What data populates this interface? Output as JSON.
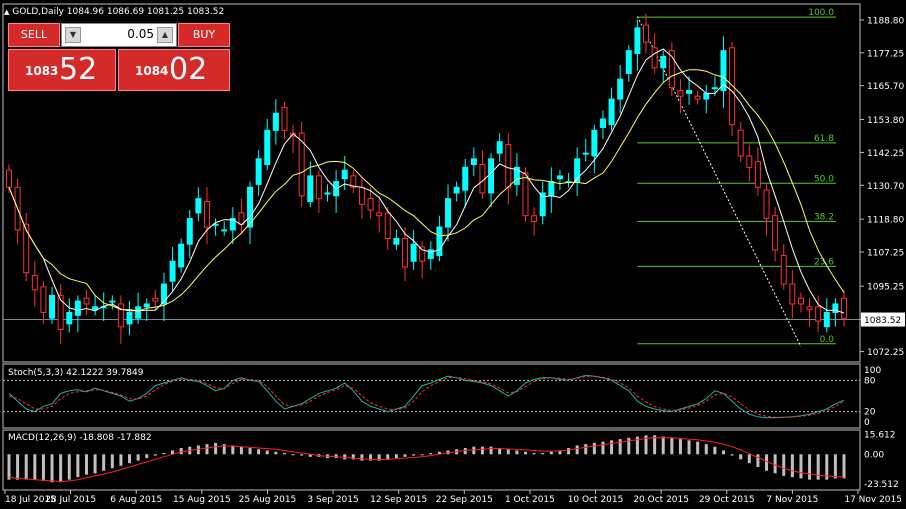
{
  "header": {
    "symbol_icon": "triangle-up-icon",
    "title": "GOLD,Daily  1084.96 1086.69 1081.25 1083.52"
  },
  "trade_panel": {
    "sell_label": "SELL",
    "buy_label": "BUY",
    "lot_value": "0.05",
    "sell_small": "1083",
    "sell_big": "52",
    "buy_small": "1084",
    "buy_big": "02"
  },
  "colors": {
    "bull": "#00ffff",
    "bear": "#ff3030",
    "fast_ma": "#ffffff",
    "slow_ma": "#ffff66",
    "fib": "#55cc22",
    "stoch_main": "#20b2aa",
    "stoch_signal": "#ff3030",
    "macd_hist": "#c0c0c0",
    "macd_signal": "#ff2020",
    "grid": "#c0c0c0"
  },
  "chart_data": [
    {
      "type": "candlestick",
      "title": "GOLD,Daily",
      "x_ticks": [
        "18 Jul 2015",
        "28 Jul 2015",
        "6 Aug 2015",
        "15 Aug 2015",
        "25 Aug 2015",
        "3 Sep 2015",
        "12 Sep 2015",
        "22 Sep 2015",
        "1 Oct 2015",
        "10 Oct 2015",
        "20 Oct 2015",
        "29 Oct 2015",
        "7 Nov 2015",
        "17 Nov 2015"
      ],
      "y_ticks": [
        "1188.80",
        "1177.25",
        "1165.70",
        "1153.80",
        "1142.25",
        "1130.70",
        "1118.80",
        "1107.25",
        "1095.25",
        "1083.52",
        "1072.25"
      ],
      "ylim": [
        1070,
        1193
      ],
      "current_price": 1083.52,
      "close": [
        1130,
        1115,
        1100,
        1094,
        1086,
        1092,
        1080,
        1086,
        1090,
        1089,
        1088,
        1088,
        1090,
        1081,
        1086,
        1088,
        1089,
        1090,
        1096,
        1104,
        1110,
        1119,
        1126,
        1116,
        1117,
        1115,
        1119,
        1117,
        1130,
        1140,
        1150,
        1156,
        1150,
        1148,
        1127,
        1134,
        1126,
        1128,
        1132,
        1136,
        1130,
        1124,
        1122,
        1120,
        1112,
        1112,
        1102,
        1110,
        1104,
        1108,
        1116,
        1126,
        1130,
        1137,
        1140,
        1128,
        1140,
        1146,
        1130,
        1137,
        1120,
        1118,
        1128,
        1132,
        1134,
        1132,
        1140,
        1142,
        1150,
        1154,
        1161,
        1168,
        1178,
        1186,
        1181,
        1172,
        1176,
        1165,
        1162,
        1164,
        1161,
        1163,
        1165,
        1178,
        1152,
        1141,
        1137,
        1130,
        1119,
        1108,
        1096,
        1089,
        1089,
        1087,
        1083,
        1086,
        1089,
        1084
      ],
      "fib_levels": [
        {
          "label": "100.0",
          "price": 1189.8
        },
        {
          "label": "61.8",
          "price": 1145.6
        },
        {
          "label": "50.0",
          "price": 1131.4
        },
        {
          "label": "38.2",
          "price": 1118.0
        },
        {
          "label": "23.6",
          "price": 1102.2
        },
        {
          "label": "0.0",
          "price": 1075.0
        }
      ]
    },
    {
      "type": "line",
      "title": "Stoch(5,3,3) 42.1222 39.7849",
      "y_ticks": [
        "100",
        "80",
        "20",
        "0"
      ],
      "levels": [
        80,
        20
      ],
      "ylim": [
        0,
        100
      ],
      "main": [
        55,
        40,
        25,
        20,
        30,
        35,
        55,
        60,
        62,
        58,
        65,
        60,
        55,
        50,
        40,
        45,
        55,
        70,
        75,
        80,
        85,
        80,
        78,
        70,
        60,
        65,
        80,
        85,
        80,
        78,
        60,
        40,
        25,
        30,
        35,
        45,
        55,
        60,
        65,
        75,
        60,
        40,
        30,
        25,
        20,
        25,
        30,
        50,
        70,
        75,
        82,
        88,
        85,
        80,
        78,
        75,
        70,
        60,
        50,
        60,
        75,
        82,
        85,
        85,
        82,
        80,
        85,
        90,
        88,
        85,
        80,
        70,
        60,
        40,
        30,
        25,
        22,
        20,
        25,
        30,
        35,
        45,
        60,
        55,
        40,
        25,
        15,
        10,
        8,
        8,
        9,
        10,
        12,
        15,
        20,
        25,
        35,
        42
      ],
      "signal": [
        50,
        45,
        35,
        25,
        25,
        30,
        45,
        55,
        58,
        60,
        62,
        61,
        57,
        52,
        45,
        44,
        50,
        62,
        72,
        78,
        82,
        82,
        80,
        74,
        66,
        64,
        74,
        82,
        82,
        80,
        68,
        50,
        33,
        30,
        33,
        40,
        50,
        57,
        62,
        70,
        65,
        50,
        37,
        30,
        25,
        24,
        27,
        40,
        58,
        70,
        78,
        85,
        86,
        83,
        80,
        77,
        73,
        65,
        56,
        58,
        68,
        78,
        83,
        85,
        84,
        82,
        84,
        88,
        88,
        86,
        82,
        75,
        66,
        50,
        38,
        30,
        25,
        22,
        23,
        27,
        32,
        40,
        52,
        55,
        48,
        35,
        23,
        15,
        11,
        9,
        9,
        10,
        11,
        13,
        17,
        22,
        30,
        40
      ]
    },
    {
      "type": "bar",
      "title": "MACD(12,26,9) -18.808 -17.882",
      "y_ticks": [
        "15.612",
        "0.00",
        "-23.512"
      ],
      "ylim": [
        -25,
        16
      ],
      "histogram": [
        -20,
        -20,
        -20,
        -20,
        -21,
        -22,
        -22,
        -20,
        -18,
        -16,
        -15,
        -13,
        -11,
        -9,
        -7,
        -5,
        -3,
        -1,
        1,
        3,
        5,
        6,
        7,
        8,
        9,
        8,
        7,
        6,
        5,
        4,
        3,
        2,
        1,
        0,
        -1,
        -2,
        -2,
        -3,
        -3,
        -4,
        -4,
        -5,
        -5,
        -5,
        -4,
        -3,
        -2,
        -1,
        0,
        1,
        2,
        3,
        4,
        5,
        6,
        6,
        6,
        5,
        4,
        3,
        2,
        1,
        1,
        2,
        3,
        5,
        7,
        8,
        9,
        10,
        11,
        12,
        13,
        14,
        15,
        15,
        14,
        13,
        12,
        11,
        10,
        8,
        6,
        3,
        -1,
        -4,
        -7,
        -10,
        -13,
        -15,
        -17,
        -18,
        -19,
        -20,
        -20,
        -20,
        -19,
        -19
      ],
      "signal": [
        -18,
        -19,
        -19.5,
        -20,
        -20.5,
        -21,
        -21.5,
        -21,
        -20,
        -18.5,
        -17,
        -15.5,
        -14,
        -12,
        -10,
        -8,
        -6,
        -4,
        -2,
        0,
        2,
        3,
        4,
        5,
        6,
        6.5,
        6.5,
        6,
        5.5,
        5,
        4.5,
        4,
        3,
        2,
        1,
        0,
        -1,
        -1.5,
        -2,
        -2.5,
        -3,
        -3.5,
        -4,
        -4.2,
        -4,
        -3.5,
        -3,
        -2.5,
        -2,
        -1,
        0,
        1,
        2,
        3,
        3.5,
        4,
        4.5,
        4.5,
        4.2,
        4,
        3.5,
        3,
        2.5,
        2.5,
        2.8,
        3.5,
        4.5,
        5.5,
        6.5,
        7.5,
        8.5,
        9.5,
        10.5,
        11.5,
        12.5,
        13,
        13.2,
        13,
        12.5,
        12,
        11.5,
        10.5,
        9.5,
        8,
        6,
        3.5,
        0.5,
        -2.5,
        -5.5,
        -8.5,
        -11,
        -13,
        -14.5,
        -15.5,
        -16.5,
        -17,
        -17.5,
        -17.9
      ]
    }
  ]
}
